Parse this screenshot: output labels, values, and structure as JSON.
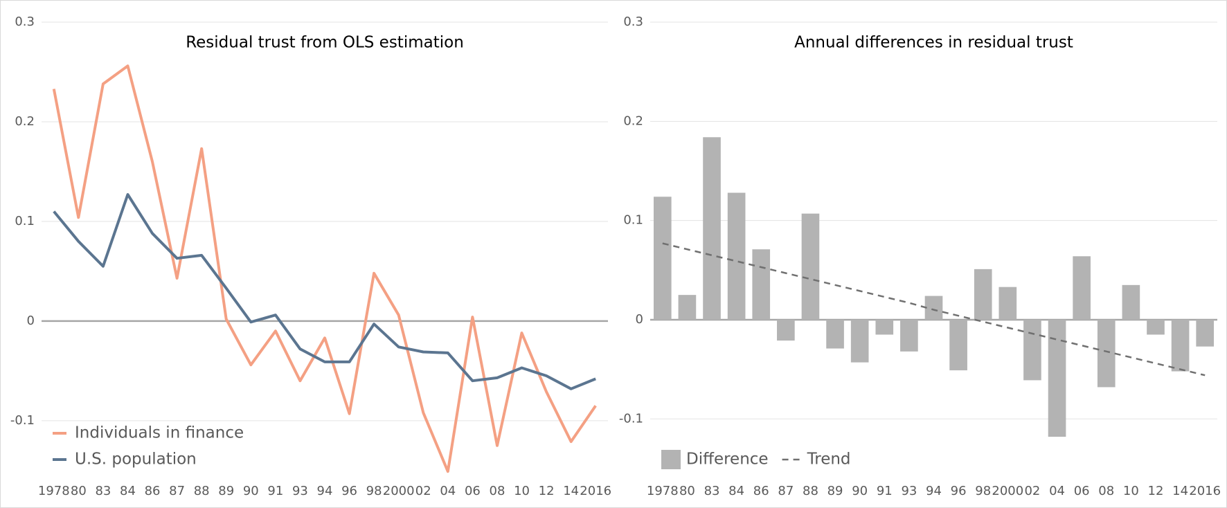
{
  "chart_data": [
    {
      "type": "line",
      "title": "Residual trust from OLS estimation",
      "categories": [
        "1978",
        "80",
        "83",
        "84",
        "86",
        "87",
        "88",
        "89",
        "90",
        "91",
        "93",
        "94",
        "96",
        "98",
        "2000",
        "02",
        "04",
        "06",
        "08",
        "10",
        "12",
        "14",
        "2016"
      ],
      "series": [
        {
          "name": "Individuals in finance",
          "color": "#f4a083",
          "values": [
            0.233,
            0.104,
            0.238,
            0.256,
            0.16,
            0.043,
            0.173,
            0.002,
            -0.044,
            -0.01,
            -0.06,
            -0.017,
            -0.093,
            0.048,
            0.006,
            -0.092,
            -0.151,
            0.004,
            -0.125,
            -0.012,
            -0.071,
            -0.121,
            -0.085
          ]
        },
        {
          "name": "U.S. population",
          "color": "#5b7590",
          "values": [
            0.11,
            0.08,
            0.055,
            0.127,
            0.088,
            0.063,
            0.066,
            0.033,
            -0.001,
            0.006,
            -0.028,
            -0.041,
            -0.041,
            -0.003,
            -0.026,
            -0.031,
            -0.032,
            -0.06,
            -0.057,
            -0.047,
            -0.055,
            -0.068,
            -0.058
          ]
        }
      ],
      "ylim": [
        -0.155,
        0.3
      ],
      "yticks": [
        -0.1,
        0,
        0.1,
        0.2,
        0.3
      ],
      "grid": true,
      "legend": "lower left"
    },
    {
      "type": "bar",
      "title": "Annual differences in residual trust",
      "categories": [
        "1978",
        "80",
        "83",
        "84",
        "86",
        "87",
        "88",
        "89",
        "90",
        "91",
        "93",
        "94",
        "96",
        "98",
        "2000",
        "02",
        "04",
        "06",
        "08",
        "10",
        "12",
        "14",
        "2016"
      ],
      "series": [
        {
          "name": "Difference",
          "color": "#b3b3b3",
          "type": "bar",
          "values": [
            0.124,
            0.025,
            0.184,
            0.128,
            0.071,
            -0.021,
            0.107,
            -0.029,
            -0.043,
            -0.015,
            -0.032,
            0.024,
            -0.051,
            0.051,
            0.033,
            -0.061,
            -0.118,
            0.064,
            -0.068,
            0.035,
            -0.015,
            -0.052,
            -0.027
          ]
        },
        {
          "name": "Trend",
          "color": "#707070",
          "type": "line",
          "dashed": true,
          "values": [
            0.077,
            0.071,
            0.065,
            0.059,
            0.053,
            0.047,
            0.041,
            0.035,
            0.029,
            0.023,
            0.017,
            0.01,
            0.004,
            -0.002,
            -0.008,
            -0.014,
            -0.02,
            -0.026,
            -0.032,
            -0.038,
            -0.044,
            -0.05,
            -0.056
          ]
        }
      ],
      "ylim": [
        -0.157,
        0.3
      ],
      "yticks": [
        -0.1,
        0,
        0.1,
        0.2,
        0.3
      ],
      "grid": true,
      "legend": "lower left"
    }
  ]
}
